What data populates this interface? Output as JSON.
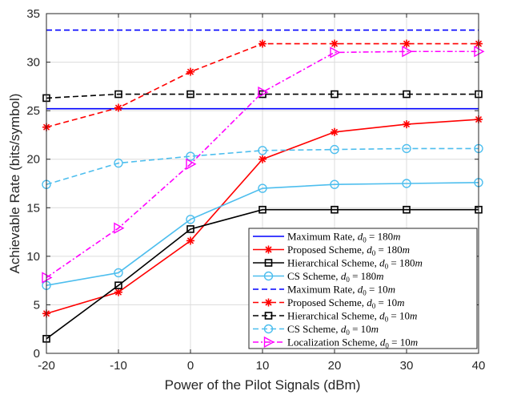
{
  "chart_data": {
    "type": "line",
    "title": "",
    "xlabel": "Power of the Pilot Signals (dBm)",
    "ylabel": "Achievable Rate (bits/symbol)",
    "xlim": [
      -20,
      40
    ],
    "ylim": [
      0,
      35
    ],
    "grid": true,
    "legend_position": "bottom-right",
    "x": [
      -20,
      -10,
      0,
      10,
      20,
      30,
      40
    ],
    "xticks": [
      "-20",
      "-10",
      "0",
      "10",
      "20",
      "30",
      "40"
    ],
    "yticks": [
      "0",
      "5",
      "10",
      "15",
      "20",
      "25",
      "30",
      "35"
    ],
    "series": [
      {
        "name": "Maximum Rate, d0 = 180m",
        "label_main": "Maximum Rate, ",
        "label_sub": "0",
        "label_val": " = 180",
        "label_unit": "m",
        "color": "#0000ff",
        "dash": "solid",
        "marker": "none",
        "values": [
          25.2,
          25.2,
          25.2,
          25.2,
          25.2,
          25.2,
          25.2
        ]
      },
      {
        "name": "Proposed Scheme, d0 = 180m",
        "label_main": "Proposed Scheme, ",
        "label_sub": "0",
        "label_val": " = 180",
        "label_unit": "m",
        "color": "#ff0000",
        "dash": "solid",
        "marker": "star",
        "values": [
          4.1,
          6.3,
          11.6,
          20.0,
          22.8,
          23.6,
          24.1
        ]
      },
      {
        "name": "Hierarchical Scheme, d0 = 180m",
        "label_main": "Hierarchical Scheme, ",
        "label_sub": "0",
        "label_val": " = 180",
        "label_unit": "m",
        "color": "#000000",
        "dash": "solid",
        "marker": "square",
        "values": [
          1.5,
          7.0,
          12.8,
          14.8,
          14.8,
          14.8,
          14.8
        ]
      },
      {
        "name": "CS Scheme, d0 = 180m",
        "label_main": "CS Scheme, ",
        "label_sub": "0",
        "label_val": " = 180",
        "label_unit": "m",
        "color": "#4dbeee",
        "dash": "solid",
        "marker": "circle",
        "values": [
          7.0,
          8.3,
          13.8,
          17.0,
          17.4,
          17.5,
          17.6
        ]
      },
      {
        "name": "Maximum Rate, d0 = 10m",
        "label_main": "Maximum Rate, ",
        "label_sub": "0",
        "label_val": " = 10",
        "label_unit": "m",
        "color": "#0000ff",
        "dash": "dashed",
        "marker": "none",
        "values": [
          33.3,
          33.3,
          33.3,
          33.3,
          33.3,
          33.3,
          33.3
        ]
      },
      {
        "name": "Proposed Scheme, d0 = 10m",
        "label_main": "Proposed Scheme, ",
        "label_sub": "0",
        "label_val": " = 10",
        "label_unit": "m",
        "color": "#ff0000",
        "dash": "dashed",
        "marker": "star",
        "values": [
          23.3,
          25.3,
          29.0,
          31.9,
          31.9,
          31.9,
          31.9
        ]
      },
      {
        "name": "Hierarchical Scheme, d0 = 10m",
        "label_main": "Hierarchical Scheme, ",
        "label_sub": "0",
        "label_val": " = 10",
        "label_unit": "m",
        "color": "#000000",
        "dash": "dashed",
        "marker": "square",
        "values": [
          26.3,
          26.7,
          26.7,
          26.7,
          26.7,
          26.7,
          26.7
        ]
      },
      {
        "name": "CS Scheme, d0 = 10m",
        "label_main": "CS Scheme, ",
        "label_sub": "0",
        "label_val": " = 10",
        "label_unit": "m",
        "color": "#4dbeee",
        "dash": "dashed",
        "marker": "circle",
        "values": [
          17.4,
          19.6,
          20.3,
          20.9,
          21.0,
          21.1,
          21.1
        ]
      },
      {
        "name": "Localization Scheme, d0 = 10m",
        "label_main": "Localization Scheme, ",
        "label_sub": "0",
        "label_val": " = 10",
        "label_unit": "m",
        "color": "#ff00ff",
        "dash": "dashdot",
        "marker": "triangle-right",
        "values": [
          7.8,
          12.9,
          19.5,
          26.9,
          31.0,
          31.1,
          31.1
        ]
      }
    ]
  }
}
